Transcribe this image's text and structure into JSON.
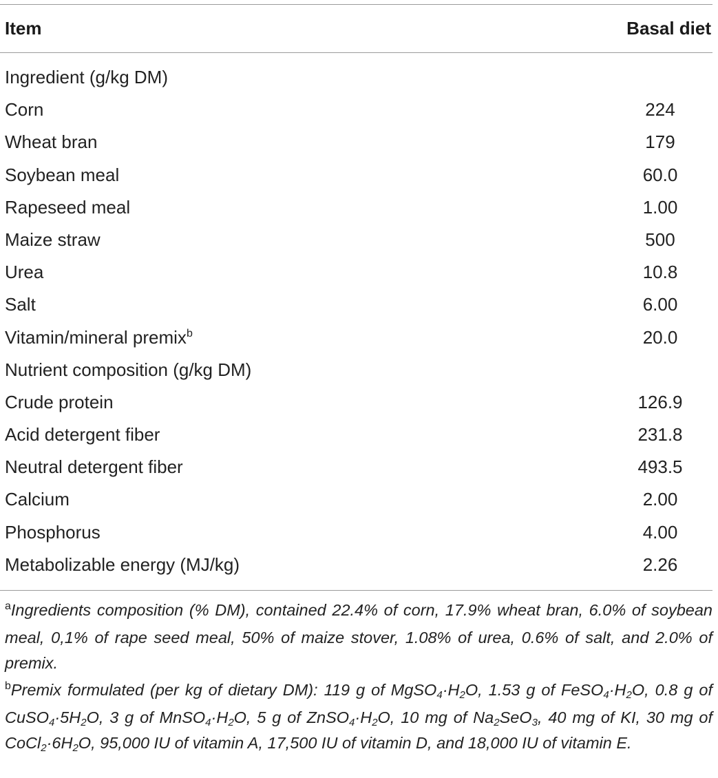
{
  "header": {
    "item_label": "Item",
    "basal_label": "Basal diet"
  },
  "rows": [
    {
      "label": "Ingredient (g/kg DM)",
      "value": ""
    },
    {
      "label": "Corn",
      "value": "224"
    },
    {
      "label": "Wheat bran",
      "value": "179"
    },
    {
      "label": "Soybean meal",
      "value": "60.0"
    },
    {
      "label": "Rapeseed meal",
      "value": "1.00"
    },
    {
      "label": "Maize straw",
      "value": "500"
    },
    {
      "label": "Urea",
      "value": "10.8"
    },
    {
      "label": "Salt",
      "value": "6.00"
    },
    {
      "label": "Vitamin/mineral premix",
      "sup": "b",
      "value": "20.0"
    },
    {
      "label": "Nutrient composition (g/kg DM)",
      "value": ""
    },
    {
      "label": "Crude protein",
      "value": "126.9"
    },
    {
      "label": "Acid detergent fiber",
      "value": "231.8"
    },
    {
      "label": "Neutral detergent fiber",
      "value": "493.5"
    },
    {
      "label": "Calcium",
      "value": "2.00"
    },
    {
      "label": "Phosphorus",
      "value": "4.00"
    },
    {
      "label": "Metabolizable energy (MJ/kg)",
      "value": "2.26"
    }
  ],
  "footnotes": {
    "a": {
      "mark": "a",
      "text": "Ingredients composition (% DM), contained 22.4% of corn, 17.9% wheat bran, 6.0% of soybean meal, 0,1% of rape seed meal, 50% of maize stover, 1.08% of urea, 0.6% of salt, and 2.0% of premix."
    },
    "b": {
      "mark": "b",
      "p1": "Premix formulated (per kg of dietary DM): 119 g of MgSO",
      "s1": "4",
      "p2": "·H",
      "s2": "2",
      "p3": "O, 1.53 g of FeSO",
      "s3": "4",
      "p4": "·H",
      "s4": "2",
      "p5": "O, 0.8 g of CuSO",
      "s5": "4",
      "p6": "·5H",
      "s6": "2",
      "p7": "O, 3 g of MnSO",
      "s7": "4",
      "p8": "·H",
      "s8": "2",
      "p9": "O, 5 g of ZnSO",
      "s9": "4",
      "p10": "·H",
      "s10": "2",
      "p11": "O, 10 mg of Na",
      "s11": "2",
      "p12": "SeO",
      "s12": "3",
      "p13": ", 40 mg of KI, 30 mg of CoCl",
      "s13": "2",
      "p14": "·6H",
      "s14": "2",
      "p15": "O, 95,000 IU of vitamin A, 17,500 IU of vitamin D, and 18,000 IU of vitamin E."
    }
  }
}
